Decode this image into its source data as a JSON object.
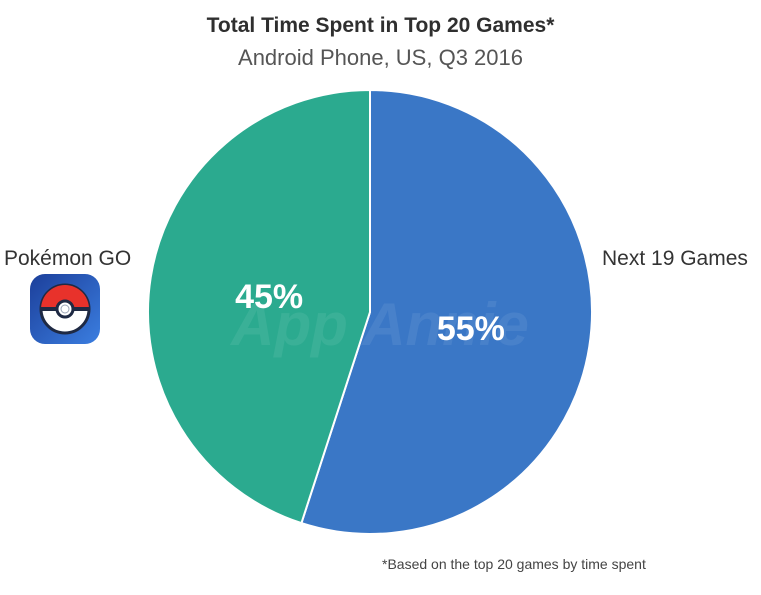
{
  "chart_data": {
    "type": "pie",
    "title": "Total Time Spent in Top 20 Games*",
    "subtitle": "Android Phone, US, Q3 2016",
    "slices": [
      {
        "label": "Pokémon GO",
        "value": 45,
        "display": "45%",
        "color": "#2baa8f"
      },
      {
        "label": "Next 19 Games",
        "value": 55,
        "display": "55%",
        "color": "#3a77c6"
      }
    ],
    "footnote": "*Based on the top 20 games by time spent"
  },
  "icons": {
    "app_icon": "pokeball-app-icon"
  },
  "watermark": "App Annie"
}
